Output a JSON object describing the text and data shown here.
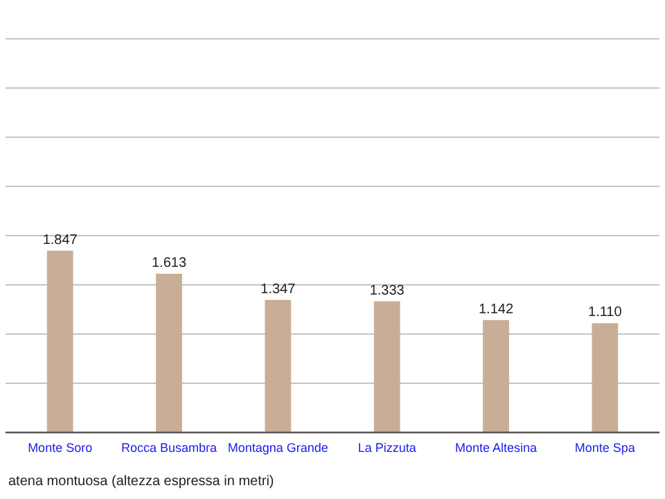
{
  "chart_data": {
    "type": "bar",
    "xlabel": "atena montuosa (altezza espressa in metri)",
    "categories": [
      "Monte Soro",
      "Rocca Busambra",
      "Montagna Grande",
      "La Pizzuta",
      "Monte Altesina",
      "Monte Spa"
    ],
    "values": [
      1847,
      1613,
      1347,
      1333,
      1142,
      1110
    ],
    "value_labels": [
      "1.847",
      "1.613",
      "1.347",
      "1.333",
      "1.142",
      "1.110"
    ],
    "color": "#c8ae96",
    "ylim": [
      0,
      4000
    ],
    "yticks": [
      {
        "value": 0,
        "label": null
      },
      {
        "value": 500,
        "label": null
      },
      {
        "value": 1000,
        "label": null
      },
      {
        "value": 1500,
        "label": null
      },
      {
        "value": 2000,
        "label": null
      },
      {
        "value": 2500,
        "label": null
      },
      {
        "value": 3000,
        "label": null
      },
      {
        "value": 3500,
        "label": null
      },
      {
        "value": 4000,
        "label": null
      }
    ],
    "tick_labels": "x",
    "grid": "y"
  }
}
